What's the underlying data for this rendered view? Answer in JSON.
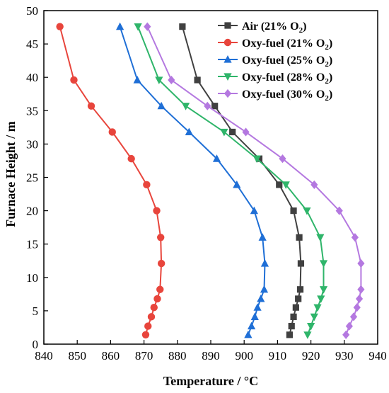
{
  "chart_data": {
    "type": "line",
    "xlabel": "Temperature / °C",
    "ylabel": "Furnace Height / m",
    "xlim": [
      840,
      940
    ],
    "ylim": [
      0,
      50
    ],
    "xticks": [
      840,
      850,
      860,
      870,
      880,
      890,
      900,
      910,
      920,
      930,
      940
    ],
    "yticks": [
      0,
      5,
      10,
      15,
      20,
      25,
      30,
      35,
      40,
      45,
      50
    ],
    "grid": false,
    "legend_position": "top-right",
    "series": [
      {
        "name": "Air (21% O",
        "name_sub": "2",
        "name_tail": ")",
        "color": "#404040",
        "marker": "square",
        "points": [
          [
            881.5,
            47.6
          ],
          [
            886.0,
            39.6
          ],
          [
            891.2,
            35.7
          ],
          [
            896.5,
            31.8
          ],
          [
            904.5,
            27.8
          ],
          [
            910.5,
            23.9
          ],
          [
            914.8,
            20.0
          ],
          [
            916.5,
            16.0
          ],
          [
            917.0,
            12.1
          ],
          [
            916.8,
            8.2
          ],
          [
            916.2,
            6.8
          ],
          [
            915.5,
            5.5
          ],
          [
            914.8,
            4.1
          ],
          [
            914.2,
            2.7
          ],
          [
            913.6,
            1.4
          ]
        ]
      },
      {
        "name": "Oxy-fuel (21% O",
        "name_sub": "2",
        "name_tail": ")",
        "color": "#e8453c",
        "marker": "circle",
        "points": [
          [
            844.8,
            47.6
          ],
          [
            849.0,
            39.6
          ],
          [
            854.2,
            35.7
          ],
          [
            860.5,
            31.8
          ],
          [
            866.2,
            27.8
          ],
          [
            870.8,
            23.9
          ],
          [
            873.8,
            20.0
          ],
          [
            875.0,
            16.0
          ],
          [
            875.2,
            12.1
          ],
          [
            874.8,
            8.2
          ],
          [
            874.0,
            6.8
          ],
          [
            873.0,
            5.5
          ],
          [
            872.2,
            4.1
          ],
          [
            871.2,
            2.7
          ],
          [
            870.5,
            1.4
          ]
        ]
      },
      {
        "name": "Oxy-fuel (25% O",
        "name_sub": "2",
        "name_tail": ")",
        "color": "#1f6fd6",
        "marker": "triangle-up",
        "points": [
          [
            862.8,
            47.6
          ],
          [
            868.0,
            39.6
          ],
          [
            875.2,
            35.7
          ],
          [
            883.5,
            31.8
          ],
          [
            891.8,
            27.8
          ],
          [
            897.8,
            23.9
          ],
          [
            903.0,
            20.0
          ],
          [
            905.5,
            16.0
          ],
          [
            906.2,
            12.1
          ],
          [
            906.0,
            8.2
          ],
          [
            905.0,
            6.8
          ],
          [
            904.0,
            5.5
          ],
          [
            903.2,
            4.1
          ],
          [
            902.2,
            2.7
          ],
          [
            901.2,
            1.4
          ]
        ]
      },
      {
        "name": "Oxy-fuel (28% O",
        "name_sub": "2",
        "name_tail": ")",
        "color": "#2fb56a",
        "marker": "triangle-down",
        "points": [
          [
            868.2,
            47.6
          ],
          [
            874.5,
            39.6
          ],
          [
            882.5,
            35.7
          ],
          [
            894.0,
            31.8
          ],
          [
            903.8,
            27.8
          ],
          [
            912.5,
            23.9
          ],
          [
            918.8,
            20.0
          ],
          [
            922.8,
            16.0
          ],
          [
            923.8,
            12.1
          ],
          [
            923.8,
            8.2
          ],
          [
            923.0,
            6.8
          ],
          [
            922.0,
            5.5
          ],
          [
            921.0,
            4.1
          ],
          [
            920.0,
            2.7
          ],
          [
            919.0,
            1.4
          ]
        ]
      },
      {
        "name": "Oxy-fuel (30% O",
        "name_sub": "2",
        "name_tail": ")",
        "color": "#b478e0",
        "marker": "diamond",
        "points": [
          [
            871.0,
            47.6
          ],
          [
            878.2,
            39.6
          ],
          [
            889.0,
            35.7
          ],
          [
            900.5,
            31.8
          ],
          [
            911.5,
            27.8
          ],
          [
            921.0,
            23.9
          ],
          [
            928.5,
            20.0
          ],
          [
            933.2,
            16.0
          ],
          [
            935.0,
            12.1
          ],
          [
            935.0,
            8.2
          ],
          [
            934.5,
            6.8
          ],
          [
            933.8,
            5.5
          ],
          [
            932.8,
            4.1
          ],
          [
            931.5,
            2.7
          ],
          [
            930.5,
            1.4
          ]
        ]
      }
    ]
  }
}
